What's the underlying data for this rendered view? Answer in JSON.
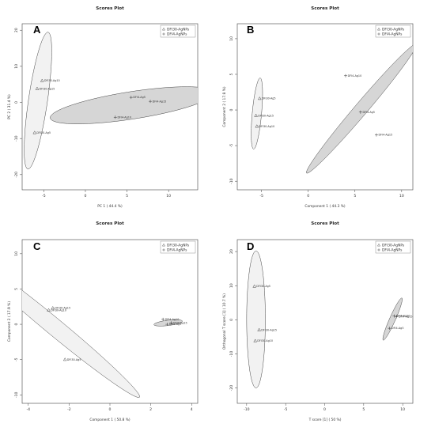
{
  "chart_data": [
    {
      "type": "scatter",
      "panel_letter": "A",
      "title": "Scores Plot",
      "xlabel": "PC 1 ( 44.4 %)",
      "ylabel": "PC 2 ( 31.4 %)",
      "xlim": [
        -7.6,
        13.5
      ],
      "ylim": [
        -24.2,
        21.8
      ],
      "xticks": [
        -5,
        0,
        5,
        10
      ],
      "yticks": [
        -20,
        -10,
        0,
        10,
        20
      ],
      "legend": {
        "position": "top-right",
        "entries": [
          "DFI30-AgNPs",
          "DFI4-AgNPs"
        ]
      },
      "series": [
        {
          "name": "DFI30-AgNPs",
          "marker": "triangle",
          "points": [
            {
              "label": "DFI30-Ag10",
              "x": -5.2,
              "y": 6.0
            },
            {
              "label": "DFI30-Ag15",
              "x": -5.8,
              "y": 3.8
            },
            {
              "label": "DFI30-Ag5",
              "x": -6.1,
              "y": -8.4
            }
          ]
        },
        {
          "name": "DFI4-AgNPs",
          "marker": "plus",
          "points": [
            {
              "label": "DFI4-Ag5",
              "x": 5.5,
              "y": 1.4
            },
            {
              "label": "DFI4-Ag15",
              "x": 7.8,
              "y": 0.3
            },
            {
              "label": "DFI4-Ag10",
              "x": 3.6,
              "y": -4.1
            }
          ]
        }
      ],
      "ellipses": [
        {
          "series": "DFI30-AgNPs",
          "cx": -5.7,
          "cy": 0.5,
          "rx": 1.15,
          "ry": 19.0,
          "angle_deg": -3.6,
          "fill": "#f2f2f2"
        },
        {
          "series": "DFI4-AgNPs",
          "cx": 5.6,
          "cy": -0.8,
          "rx": 10.5,
          "ry": 3.6,
          "angle_deg": 21.9,
          "fill": "#d6d6d6"
        }
      ]
    },
    {
      "type": "scatter",
      "panel_letter": "B",
      "title": "Scores Plot",
      "xlabel": "Component 1 ( 44.3 %)",
      "ylabel": "Component 2 ( 17.8 %)",
      "xlim": [
        -7.6,
        11.2
      ],
      "ylim": [
        -11.2,
        12.1
      ],
      "xticks": [
        -5,
        0,
        5,
        10
      ],
      "yticks": [
        -10,
        -5,
        0,
        5,
        10
      ],
      "legend": {
        "position": "top-right",
        "entries": [
          "DFI30-AgNPs",
          "DFI4-AgNPs"
        ]
      },
      "series": [
        {
          "name": "DFI30-AgNPs",
          "marker": "triangle",
          "points": [
            {
              "label": "DFI30-Ag5",
              "x": -5.2,
              "y": 1.6
            },
            {
              "label": "DFI30-Ag15",
              "x": -5.6,
              "y": -0.8
            },
            {
              "label": "DFI30-Ag10",
              "x": -5.5,
              "y": -2.3
            }
          ]
        },
        {
          "name": "DFI4-AgNPs",
          "marker": "plus",
          "points": [
            {
              "label": "DFI4-Ag10",
              "x": 4.0,
              "y": 4.8
            },
            {
              "label": "DFI4-Ag5",
              "x": 5.6,
              "y": -0.3
            },
            {
              "label": "DFI4-Ag15",
              "x": 7.3,
              "y": -3.5
            }
          ]
        }
      ],
      "ellipses": [
        {
          "series": "DFI30-AgNPs",
          "cx": -5.5,
          "cy": -0.5,
          "rx": 0.5,
          "ry": 5.0,
          "angle_deg": -4.0,
          "fill": "#f2f2f2"
        },
        {
          "series": "DFI4-AgNPs",
          "cx": 5.7,
          "cy": 0.2,
          "rx": 10.8,
          "ry": 0.75,
          "angle_deg": 57.1,
          "fill": "#d6d6d6"
        }
      ]
    },
    {
      "type": "scatter",
      "panel_letter": "C",
      "title": "Scores Plot",
      "xlabel": "Component 1 ( 50.8 %)",
      "ylabel": "Component 2 ( 17.9 %)",
      "xlim": [
        -4.3,
        4.3
      ],
      "ylim": [
        -11.2,
        12.0
      ],
      "xticks": [
        -4,
        -2,
        0,
        2,
        4
      ],
      "yticks": [
        -10,
        -5,
        0,
        5,
        10
      ],
      "legend": {
        "position": "top-right",
        "entries": [
          "DFI30-AgNPs",
          "DFI4-AgNPs"
        ]
      },
      "series": [
        {
          "name": "DFI30-AgNPs",
          "marker": "triangle",
          "points": [
            {
              "label": "DFI30-Ag15",
              "x": -2.8,
              "y": 2.3
            },
            {
              "label": "DFI30-Ag10",
              "x": -3.0,
              "y": 2.0
            },
            {
              "label": "DFI30-Ag5",
              "x": -2.2,
              "y": -5.0
            }
          ]
        },
        {
          "name": "DFI4-AgNPs",
          "marker": "plus",
          "points": [
            {
              "label": "DFI4-Ag10",
              "x": 2.6,
              "y": 0.7
            },
            {
              "label": "DFI4-Ag15",
              "x": 3.0,
              "y": 0.2
            },
            {
              "label": "DFI4-Ag5",
              "x": 2.8,
              "y": 0.0
            }
          ]
        }
      ],
      "ellipses": [
        {
          "series": "DFI30-AgNPs",
          "cx": -2.75,
          "cy": -0.3,
          "rx": 10.9,
          "ry": 0.6,
          "angle_deg": -67.5,
          "fill": "#f2f2f2"
        },
        {
          "series": "DFI4-AgNPs",
          "cx": 2.85,
          "cy": 0.2,
          "rx": 0.75,
          "ry": 0.35,
          "angle_deg": 25.0,
          "fill": "#d6d6d6"
        }
      ]
    },
    {
      "type": "scatter",
      "panel_letter": "D",
      "title": "Scores Plot",
      "xlabel": "T score [1] ( 50 %)",
      "ylabel": "Orthogonal T score [1] ( 10.7 %)",
      "xlim": [
        -11.2,
        11.3
      ],
      "ylim": [
        -24.5,
        23.5
      ],
      "xticks": [
        -10,
        -5,
        0,
        5,
        10
      ],
      "yticks": [
        -20,
        -10,
        0,
        10,
        20
      ],
      "legend": {
        "position": "top-right",
        "entries": [
          "DFI30-AgNPs",
          "DFI4-AgNPs"
        ]
      },
      "series": [
        {
          "name": "DFI30-AgNPs",
          "marker": "triangle",
          "points": [
            {
              "label": "DFI30-Ag5",
              "x": -9.0,
              "y": 9.8
            },
            {
              "label": "DFI30-Ag15",
              "x": -8.4,
              "y": -3.0
            },
            {
              "label": "DFI30-Ag10",
              "x": -8.9,
              "y": -6.2
            }
          ]
        },
        {
          "name": "DFI4-AgNPs",
          "marker": "plus",
          "points": [
            {
              "label": "DFI4-Ag10",
              "x": 8.9,
              "y": 1.1
            },
            {
              "label": "DFI4-Ag15",
              "x": 9.2,
              "y": 0.9
            },
            {
              "label": "DFI4-Ag5",
              "x": 8.3,
              "y": -2.5
            }
          ]
        }
      ],
      "ellipses": [
        {
          "series": "DFI30-AgNPs",
          "cx": -8.8,
          "cy": 0.1,
          "rx": 1.2,
          "ry": 20.1,
          "angle_deg": 0,
          "fill": "#f2f2f2"
        },
        {
          "series": "DFI4-AgNPs",
          "cx": 8.7,
          "cy": 0.2,
          "rx": 6.3,
          "ry": 0.4,
          "angle_deg": 79.2,
          "fill": "#d6d6d6"
        }
      ]
    }
  ]
}
